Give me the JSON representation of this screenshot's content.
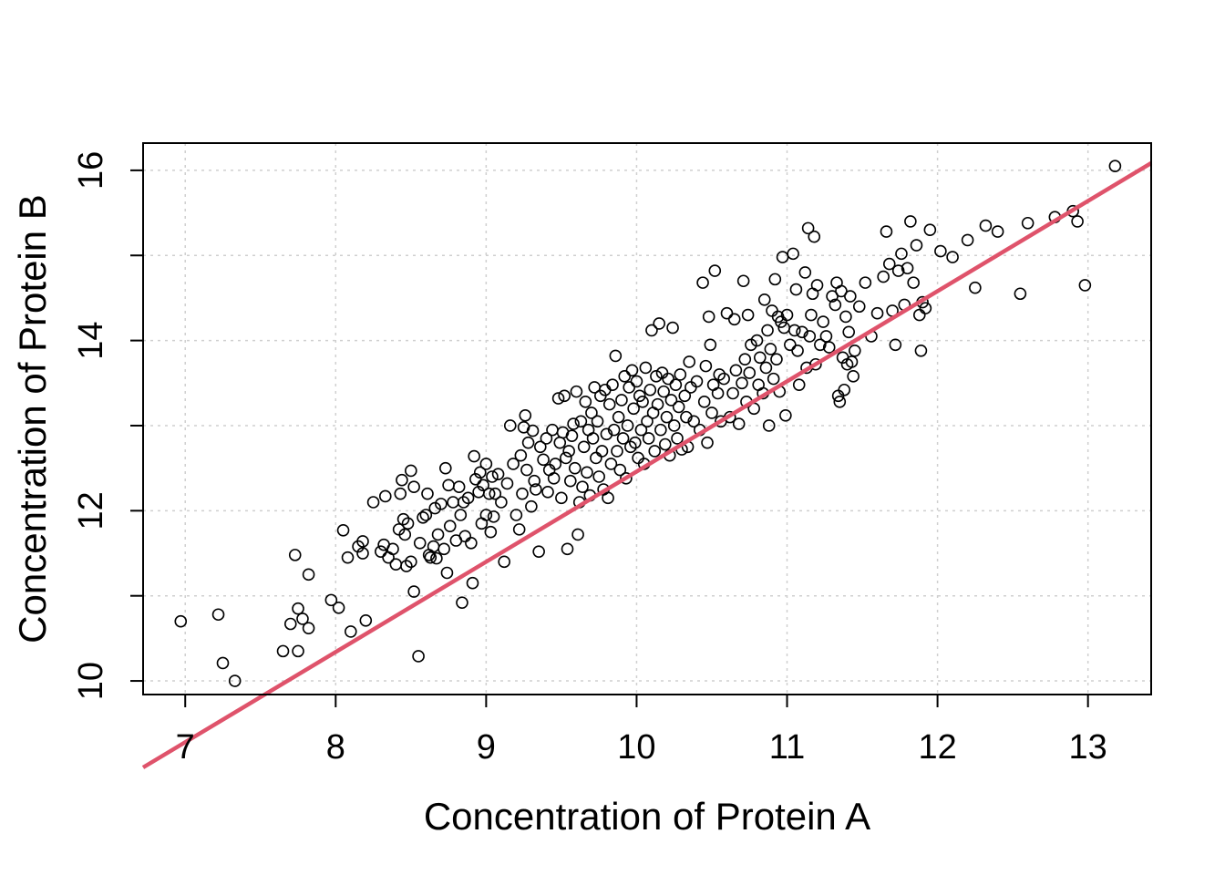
{
  "chart_data": {
    "type": "scatter",
    "title": "",
    "xlabel": "Concentration of Protein A",
    "ylabel": "Concentration of Protein B",
    "xlim": [
      6.72,
      13.42
    ],
    "ylim": [
      9.84,
      16.32
    ],
    "x_ticks": [
      7,
      8,
      9,
      10,
      11,
      12,
      13
    ],
    "y_ticks": [
      10,
      11,
      12,
      13,
      14,
      15,
      16
    ],
    "y_tick_labels": [
      "10",
      "",
      "12",
      "",
      "14",
      "",
      "16"
    ],
    "x_tick_labels": [
      "7",
      "8",
      "9",
      "10",
      "11",
      "12",
      "13"
    ],
    "grid": true,
    "marker": "open-circle",
    "fit_line": {
      "intercept": 1.86,
      "slope": 1.06,
      "color": "#DF536B"
    },
    "points": [
      [
        6.97,
        10.7
      ],
      [
        7.22,
        10.78
      ],
      [
        7.25,
        10.21
      ],
      [
        7.33,
        10.0
      ],
      [
        7.65,
        10.35
      ],
      [
        7.7,
        10.67
      ],
      [
        7.73,
        11.48
      ],
      [
        7.75,
        10.35
      ],
      [
        7.75,
        10.85
      ],
      [
        7.78,
        10.73
      ],
      [
        7.82,
        10.62
      ],
      [
        7.82,
        11.25
      ],
      [
        7.97,
        10.95
      ],
      [
        8.02,
        10.86
      ],
      [
        8.05,
        11.77
      ],
      [
        8.08,
        11.45
      ],
      [
        8.1,
        10.58
      ],
      [
        8.15,
        11.58
      ],
      [
        8.18,
        11.64
      ],
      [
        8.18,
        11.5
      ],
      [
        8.2,
        10.71
      ],
      [
        8.25,
        12.1
      ],
      [
        8.3,
        11.52
      ],
      [
        8.32,
        11.6
      ],
      [
        8.33,
        12.17
      ],
      [
        8.35,
        11.45
      ],
      [
        8.38,
        11.55
      ],
      [
        8.4,
        11.37
      ],
      [
        8.42,
        11.78
      ],
      [
        8.43,
        12.2
      ],
      [
        8.44,
        12.36
      ],
      [
        8.45,
        11.9
      ],
      [
        8.46,
        11.72
      ],
      [
        8.47,
        11.35
      ],
      [
        8.48,
        11.85
      ],
      [
        8.5,
        12.47
      ],
      [
        8.5,
        11.4
      ],
      [
        8.52,
        12.28
      ],
      [
        8.52,
        11.05
      ],
      [
        8.55,
        10.29
      ],
      [
        8.56,
        11.62
      ],
      [
        8.58,
        11.92
      ],
      [
        8.6,
        11.95
      ],
      [
        8.61,
        12.2
      ],
      [
        8.62,
        11.48
      ],
      [
        8.63,
        11.45
      ],
      [
        8.65,
        11.58
      ],
      [
        8.66,
        12.03
      ],
      [
        8.67,
        11.44
      ],
      [
        8.68,
        11.72
      ],
      [
        8.7,
        12.08
      ],
      [
        8.72,
        11.55
      ],
      [
        8.73,
        12.5
      ],
      [
        8.74,
        11.27
      ],
      [
        8.75,
        12.3
      ],
      [
        8.76,
        11.82
      ],
      [
        8.78,
        12.1
      ],
      [
        8.8,
        11.65
      ],
      [
        8.82,
        12.28
      ],
      [
        8.83,
        11.95
      ],
      [
        8.84,
        10.92
      ],
      [
        8.85,
        12.1
      ],
      [
        8.86,
        11.7
      ],
      [
        8.88,
        12.15
      ],
      [
        8.9,
        11.62
      ],
      [
        8.91,
        11.15
      ],
      [
        8.92,
        12.64
      ],
      [
        8.93,
        12.37
      ],
      [
        8.95,
        12.22
      ],
      [
        8.96,
        12.45
      ],
      [
        8.97,
        11.85
      ],
      [
        8.98,
        12.3
      ],
      [
        9.0,
        11.95
      ],
      [
        9.0,
        12.55
      ],
      [
        9.02,
        12.2
      ],
      [
        9.03,
        11.75
      ],
      [
        9.04,
        12.4
      ],
      [
        9.05,
        11.93
      ],
      [
        9.06,
        12.2
      ],
      [
        9.08,
        12.43
      ],
      [
        9.1,
        12.1
      ],
      [
        9.12,
        11.4
      ],
      [
        9.14,
        12.32
      ],
      [
        9.16,
        13.0
      ],
      [
        9.18,
        12.55
      ],
      [
        9.2,
        11.95
      ],
      [
        9.22,
        11.78
      ],
      [
        9.23,
        12.65
      ],
      [
        9.24,
        12.2
      ],
      [
        9.25,
        12.98
      ],
      [
        9.26,
        13.12
      ],
      [
        9.27,
        12.48
      ],
      [
        9.28,
        12.8
      ],
      [
        9.3,
        12.05
      ],
      [
        9.31,
        12.94
      ],
      [
        9.32,
        12.35
      ],
      [
        9.33,
        12.25
      ],
      [
        9.35,
        11.52
      ],
      [
        9.36,
        12.75
      ],
      [
        9.38,
        12.6
      ],
      [
        9.4,
        12.85
      ],
      [
        9.41,
        12.22
      ],
      [
        9.42,
        12.48
      ],
      [
        9.44,
        12.95
      ],
      [
        9.45,
        12.38
      ],
      [
        9.46,
        12.55
      ],
      [
        9.48,
        13.32
      ],
      [
        9.49,
        12.8
      ],
      [
        9.5,
        12.15
      ],
      [
        9.51,
        12.92
      ],
      [
        9.52,
        13.35
      ],
      [
        9.53,
        12.62
      ],
      [
        9.54,
        11.55
      ],
      [
        9.55,
        12.7
      ],
      [
        9.56,
        12.35
      ],
      [
        9.57,
        12.88
      ],
      [
        9.58,
        13.02
      ],
      [
        9.59,
        12.5
      ],
      [
        9.6,
        13.4
      ],
      [
        9.61,
        11.72
      ],
      [
        9.62,
        12.1
      ],
      [
        9.63,
        13.05
      ],
      [
        9.64,
        12.28
      ],
      [
        9.65,
        12.75
      ],
      [
        9.66,
        13.28
      ],
      [
        9.67,
        12.45
      ],
      [
        9.68,
        12.95
      ],
      [
        9.69,
        12.18
      ],
      [
        9.7,
        13.15
      ],
      [
        9.71,
        12.85
      ],
      [
        9.72,
        13.45
      ],
      [
        9.73,
        12.62
      ],
      [
        9.74,
        13.05
      ],
      [
        9.75,
        12.4
      ],
      [
        9.76,
        13.35
      ],
      [
        9.77,
        12.7
      ],
      [
        9.78,
        12.25
      ],
      [
        9.79,
        13.42
      ],
      [
        9.8,
        12.9
      ],
      [
        9.81,
        12.15
      ],
      [
        9.82,
        13.25
      ],
      [
        9.83,
        12.55
      ],
      [
        9.84,
        13.48
      ],
      [
        9.85,
        12.95
      ],
      [
        9.86,
        13.82
      ],
      [
        9.87,
        12.7
      ],
      [
        9.88,
        13.1
      ],
      [
        9.89,
        12.48
      ],
      [
        9.9,
        13.3
      ],
      [
        9.91,
        12.85
      ],
      [
        9.92,
        13.58
      ],
      [
        9.93,
        12.38
      ],
      [
        9.94,
        13.0
      ],
      [
        9.95,
        13.45
      ],
      [
        9.96,
        12.75
      ],
      [
        9.97,
        13.65
      ],
      [
        9.98,
        13.2
      ],
      [
        9.99,
        12.8
      ],
      [
        10.0,
        13.52
      ],
      [
        10.01,
        12.62
      ],
      [
        10.02,
        13.35
      ],
      [
        10.03,
        12.95
      ],
      [
        10.04,
        13.28
      ],
      [
        10.05,
        12.55
      ],
      [
        10.06,
        13.68
      ],
      [
        10.07,
        13.05
      ],
      [
        10.08,
        12.85
      ],
      [
        10.09,
        13.42
      ],
      [
        10.1,
        14.12
      ],
      [
        10.11,
        13.15
      ],
      [
        10.12,
        12.7
      ],
      [
        10.13,
        13.58
      ],
      [
        10.14,
        13.25
      ],
      [
        10.15,
        14.2
      ],
      [
        10.16,
        12.95
      ],
      [
        10.17,
        13.62
      ],
      [
        10.18,
        13.4
      ],
      [
        10.19,
        12.78
      ],
      [
        10.2,
        13.1
      ],
      [
        10.21,
        13.55
      ],
      [
        10.22,
        12.65
      ],
      [
        10.23,
        13.3
      ],
      [
        10.24,
        14.15
      ],
      [
        10.25,
        13.0
      ],
      [
        10.26,
        13.48
      ],
      [
        10.27,
        12.85
      ],
      [
        10.28,
        13.22
      ],
      [
        10.29,
        13.6
      ],
      [
        10.3,
        12.72
      ],
      [
        10.32,
        13.35
      ],
      [
        10.33,
        13.1
      ],
      [
        10.34,
        12.75
      ],
      [
        10.35,
        13.75
      ],
      [
        10.36,
        13.45
      ],
      [
        10.38,
        13.05
      ],
      [
        10.4,
        13.52
      ],
      [
        10.42,
        12.95
      ],
      [
        10.44,
        14.68
      ],
      [
        10.45,
        13.28
      ],
      [
        10.46,
        13.7
      ],
      [
        10.47,
        12.8
      ],
      [
        10.48,
        14.28
      ],
      [
        10.49,
        13.95
      ],
      [
        10.5,
        13.15
      ],
      [
        10.51,
        13.48
      ],
      [
        10.52,
        14.82
      ],
      [
        10.54,
        13.38
      ],
      [
        10.55,
        13.6
      ],
      [
        10.56,
        13.05
      ],
      [
        10.58,
        13.55
      ],
      [
        10.6,
        14.32
      ],
      [
        10.62,
        13.1
      ],
      [
        10.64,
        13.38
      ],
      [
        10.65,
        14.25
      ],
      [
        10.66,
        13.65
      ],
      [
        10.68,
        13.02
      ],
      [
        10.7,
        13.5
      ],
      [
        10.71,
        14.7
      ],
      [
        10.72,
        13.78
      ],
      [
        10.73,
        13.28
      ],
      [
        10.74,
        14.3
      ],
      [
        10.75,
        13.62
      ],
      [
        10.76,
        13.95
      ],
      [
        10.78,
        13.2
      ],
      [
        10.8,
        14.0
      ],
      [
        10.81,
        13.48
      ],
      [
        10.82,
        13.8
      ],
      [
        10.84,
        13.38
      ],
      [
        10.85,
        14.48
      ],
      [
        10.86,
        13.68
      ],
      [
        10.87,
        14.12
      ],
      [
        10.88,
        13.0
      ],
      [
        10.89,
        13.9
      ],
      [
        10.9,
        14.35
      ],
      [
        10.91,
        13.55
      ],
      [
        10.92,
        14.72
      ],
      [
        10.93,
        13.78
      ],
      [
        10.94,
        14.28
      ],
      [
        10.95,
        13.4
      ],
      [
        10.96,
        14.22
      ],
      [
        10.97,
        14.98
      ],
      [
        10.98,
        14.15
      ],
      [
        10.99,
        13.12
      ],
      [
        11.0,
        14.3
      ],
      [
        11.02,
        13.95
      ],
      [
        11.04,
        15.02
      ],
      [
        11.05,
        14.12
      ],
      [
        11.06,
        14.6
      ],
      [
        11.07,
        13.88
      ],
      [
        11.08,
        13.48
      ],
      [
        11.1,
        14.1
      ],
      [
        11.12,
        14.8
      ],
      [
        11.13,
        13.68
      ],
      [
        11.14,
        15.32
      ],
      [
        11.15,
        14.05
      ],
      [
        11.16,
        14.3
      ],
      [
        11.17,
        14.55
      ],
      [
        11.18,
        15.22
      ],
      [
        11.19,
        13.72
      ],
      [
        11.2,
        14.65
      ],
      [
        11.22,
        13.95
      ],
      [
        11.24,
        14.22
      ],
      [
        11.26,
        14.05
      ],
      [
        11.28,
        13.92
      ],
      [
        11.3,
        14.52
      ],
      [
        11.32,
        14.42
      ],
      [
        11.33,
        14.68
      ],
      [
        11.34,
        13.35
      ],
      [
        11.35,
        13.28
      ],
      [
        11.36,
        14.58
      ],
      [
        11.37,
        13.8
      ],
      [
        11.38,
        13.42
      ],
      [
        11.39,
        14.28
      ],
      [
        11.4,
        13.72
      ],
      [
        11.41,
        14.1
      ],
      [
        11.42,
        14.52
      ],
      [
        11.43,
        13.75
      ],
      [
        11.44,
        13.58
      ],
      [
        11.45,
        13.88
      ],
      [
        11.48,
        14.4
      ],
      [
        11.52,
        14.68
      ],
      [
        11.56,
        14.05
      ],
      [
        11.6,
        14.32
      ],
      [
        11.64,
        14.75
      ],
      [
        11.66,
        15.28
      ],
      [
        11.68,
        14.9
      ],
      [
        11.7,
        14.35
      ],
      [
        11.72,
        13.95
      ],
      [
        11.74,
        14.82
      ],
      [
        11.76,
        15.02
      ],
      [
        11.78,
        14.42
      ],
      [
        11.8,
        14.85
      ],
      [
        11.82,
        15.4
      ],
      [
        11.84,
        14.68
      ],
      [
        11.86,
        15.12
      ],
      [
        11.88,
        14.3
      ],
      [
        11.89,
        13.88
      ],
      [
        11.9,
        14.45
      ],
      [
        11.92,
        14.38
      ],
      [
        11.95,
        15.3
      ],
      [
        12.02,
        15.05
      ],
      [
        12.1,
        14.98
      ],
      [
        12.2,
        15.18
      ],
      [
        12.25,
        14.62
      ],
      [
        12.32,
        15.35
      ],
      [
        12.4,
        15.28
      ],
      [
        12.55,
        14.55
      ],
      [
        12.6,
        15.38
      ],
      [
        12.78,
        15.45
      ],
      [
        12.9,
        15.52
      ],
      [
        12.93,
        15.4
      ],
      [
        12.98,
        14.65
      ],
      [
        13.18,
        16.05
      ]
    ]
  }
}
